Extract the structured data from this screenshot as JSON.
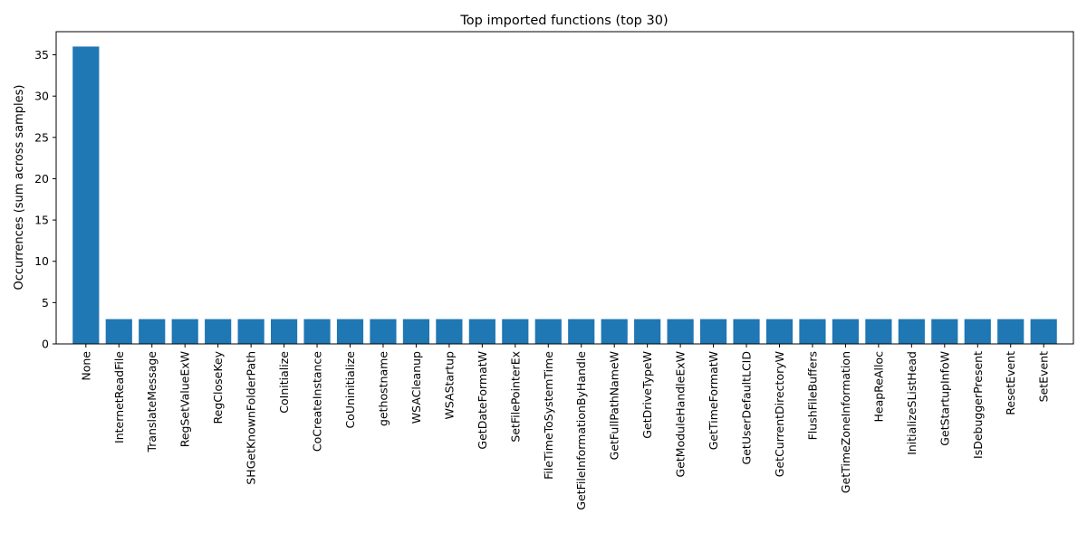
{
  "chart_data": {
    "type": "bar",
    "title": "Top imported functions (top 30)",
    "xlabel": "",
    "ylabel": "Occurrences (sum across samples)",
    "ylim": [
      0,
      37.8
    ],
    "yticks": [
      0,
      5,
      10,
      15,
      20,
      25,
      30,
      35
    ],
    "grid": false,
    "bar_color": "#1f77b4",
    "categories": [
      "None",
      "InternetReadFile",
      "TranslateMessage",
      "RegSetValueExW",
      "RegCloseKey",
      "SHGetKnownFolderPath",
      "CoInitialize",
      "CoCreateInstance",
      "CoUninitialize",
      "gethostname",
      "WSACleanup",
      "WSAStartup",
      "GetDateFormatW",
      "SetFilePointerEx",
      "FileTimeToSystemTime",
      "GetFileInformationByHandle",
      "GetFullPathNameW",
      "GetDriveTypeW",
      "GetModuleHandleExW",
      "GetTimeFormatW",
      "GetUserDefaultLCID",
      "GetCurrentDirectoryW",
      "FlushFileBuffers",
      "GetTimeZoneInformation",
      "HeapReAlloc",
      "InitializeSListHead",
      "GetStartupInfoW",
      "IsDebuggerPresent",
      "ResetEvent",
      "SetEvent"
    ],
    "values": [
      36,
      3,
      3,
      3,
      3,
      3,
      3,
      3,
      3,
      3,
      3,
      3,
      3,
      3,
      3,
      3,
      3,
      3,
      3,
      3,
      3,
      3,
      3,
      3,
      3,
      3,
      3,
      3,
      3,
      3
    ]
  }
}
